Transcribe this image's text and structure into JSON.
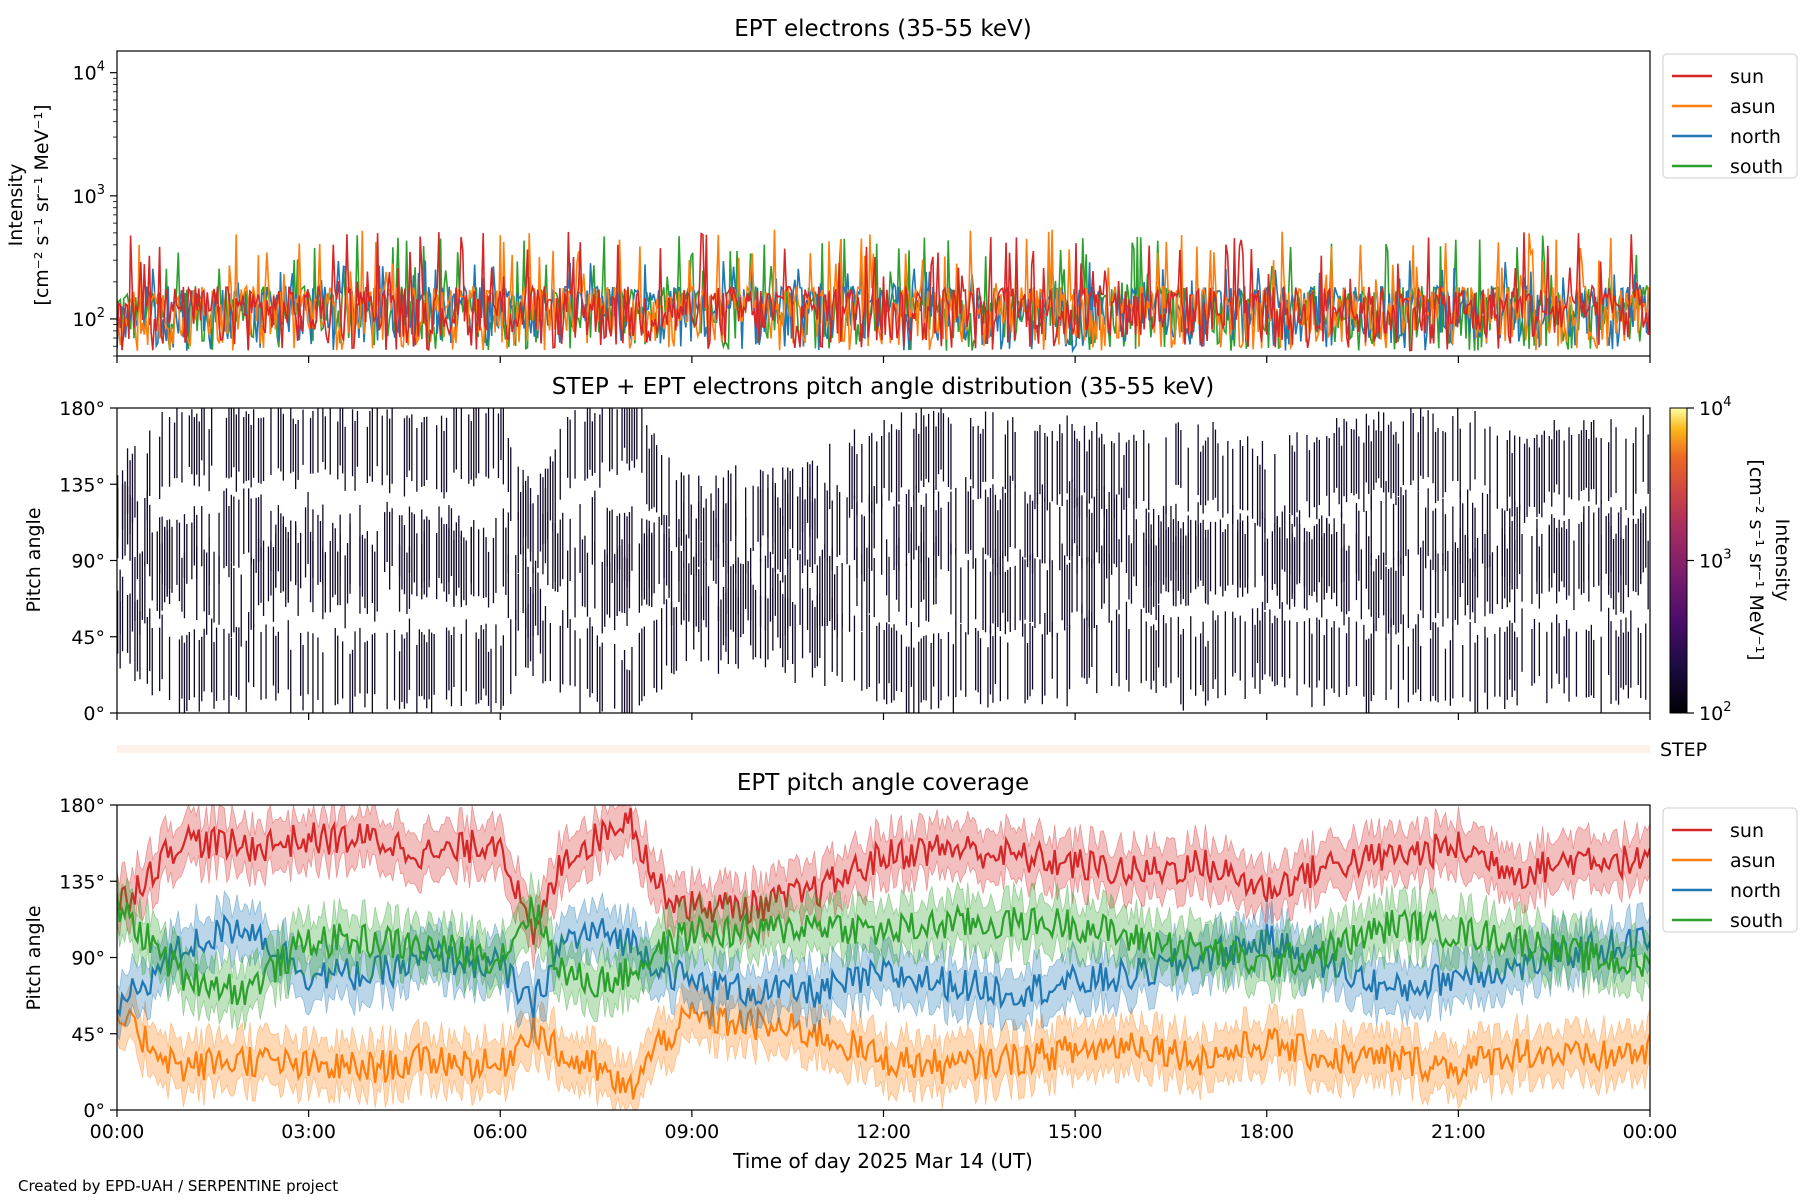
{
  "footer": "Created by EPD-UAH / SERPENTINE project",
  "chart_data": [
    {
      "type": "line",
      "title": "EPT electrons (35-55 keV)",
      "ylabel_line1": "Intensity",
      "ylabel_line2": "[cm⁻² s⁻¹ sr⁻¹ MeV⁻¹]",
      "yscale": "log",
      "ylim": [
        50,
        15000
      ],
      "yticks": [
        {
          "value": 100,
          "base": "10",
          "exp": "2"
        },
        {
          "value": 1000,
          "base": "10",
          "exp": "3"
        },
        {
          "value": 10000,
          "base": "10",
          "exp": "4"
        }
      ],
      "x_hours_range": [
        0,
        24
      ],
      "legend": "outside-right",
      "series": [
        {
          "name": "sun",
          "color": "#d62728",
          "baseline": 100,
          "spikes_max": 520
        },
        {
          "name": "asun",
          "color": "#ff7f0e",
          "baseline": 100,
          "spikes_max": 530
        },
        {
          "name": "north",
          "color": "#1f77b4",
          "baseline": 100,
          "spikes_max": 300
        },
        {
          "name": "south",
          "color": "#2ca02c",
          "baseline": 100,
          "spikes_max": 480
        }
      ],
      "spike_density": "dense"
    },
    {
      "type": "heatmap",
      "title": "STEP + EPT electrons pitch angle distribution (35-55 keV)",
      "ylabel": "Pitch angle",
      "ylim": [
        0,
        180
      ],
      "ytick_labels": [
        "0°",
        "45°",
        "90°",
        "135°",
        "180°"
      ],
      "colorbar": {
        "label_line1": "Intensity",
        "label_line2": "[cm⁻² s⁻¹ sr⁻¹ MeV⁻¹]",
        "scale": "log",
        "range": [
          100,
          10000
        ],
        "ticks": [
          {
            "base": "10",
            "exp": "2"
          },
          {
            "base": "10",
            "exp": "3"
          },
          {
            "base": "10",
            "exp": "4"
          }
        ],
        "colormap": "inferno",
        "dominant_color": "#120a28"
      }
    },
    {
      "type": "bar",
      "label": "STEP",
      "color": "#fdf1ea"
    },
    {
      "type": "area",
      "title": "EPT pitch angle coverage",
      "ylabel": "Pitch angle",
      "xlabel": "Time of day 2025 Mar 14 (UT)",
      "ylim": [
        0,
        180
      ],
      "ytick_labels": [
        "0°",
        "45°",
        "90°",
        "135°",
        "180°"
      ],
      "x_tick_labels": [
        "00:00",
        "03:00",
        "06:00",
        "09:00",
        "12:00",
        "15:00",
        "18:00",
        "21:00",
        "00:00"
      ],
      "legend": "outside-right",
      "band_halfwidth_deg": 15,
      "series": [
        {
          "name": "sun",
          "color": "#d62728",
          "x_hours": [
            0,
            1,
            2,
            3,
            4,
            5,
            6,
            6.5,
            7,
            7.5,
            8,
            8.5,
            9,
            10,
            11,
            12,
            13,
            14,
            15,
            16,
            17,
            18,
            19,
            20,
            21,
            22,
            23,
            24
          ],
          "pitch": [
            120,
            160,
            155,
            160,
            160,
            150,
            160,
            100,
            150,
            160,
            175,
            130,
            120,
            120,
            130,
            150,
            155,
            150,
            145,
            140,
            145,
            130,
            145,
            150,
            155,
            140,
            150,
            145
          ]
        },
        {
          "name": "asun",
          "color": "#ff7f0e",
          "x_hours": [
            0,
            1,
            2,
            3,
            4,
            5,
            6,
            6.5,
            7,
            7.5,
            8,
            8.5,
            9,
            10,
            11,
            12,
            13,
            14,
            15,
            16,
            17,
            18,
            19,
            20,
            21,
            22,
            23,
            24
          ],
          "pitch": [
            55,
            25,
            30,
            25,
            25,
            30,
            25,
            50,
            30,
            25,
            10,
            40,
            55,
            50,
            45,
            30,
            25,
            30,
            35,
            40,
            30,
            40,
            30,
            30,
            25,
            35,
            30,
            35
          ]
        },
        {
          "name": "north",
          "color": "#1f77b4",
          "x_hours": [
            0,
            1,
            2,
            3,
            4,
            5,
            6,
            6.5,
            7,
            7.5,
            8,
            8.5,
            9,
            10,
            11,
            12,
            13,
            14,
            15,
            16,
            17,
            18,
            19,
            20,
            21,
            22,
            23,
            24
          ],
          "pitch": [
            60,
            95,
            110,
            80,
            80,
            90,
            85,
            60,
            100,
            105,
            100,
            85,
            75,
            70,
            70,
            80,
            75,
            70,
            75,
            80,
            90,
            100,
            85,
            70,
            80,
            85,
            95,
            100
          ]
        },
        {
          "name": "south",
          "color": "#2ca02c",
          "x_hours": [
            0,
            1,
            2,
            3,
            4,
            5,
            6,
            6.5,
            7,
            7.5,
            8,
            8.5,
            9,
            10,
            11,
            12,
            13,
            14,
            15,
            16,
            17,
            18,
            19,
            20,
            21,
            22,
            23,
            24
          ],
          "pitch": [
            120,
            80,
            70,
            100,
            100,
            95,
            90,
            120,
            80,
            75,
            80,
            95,
            105,
            105,
            110,
            105,
            110,
            110,
            110,
            100,
            95,
            85,
            95,
            110,
            105,
            100,
            90,
            85
          ]
        }
      ]
    }
  ]
}
